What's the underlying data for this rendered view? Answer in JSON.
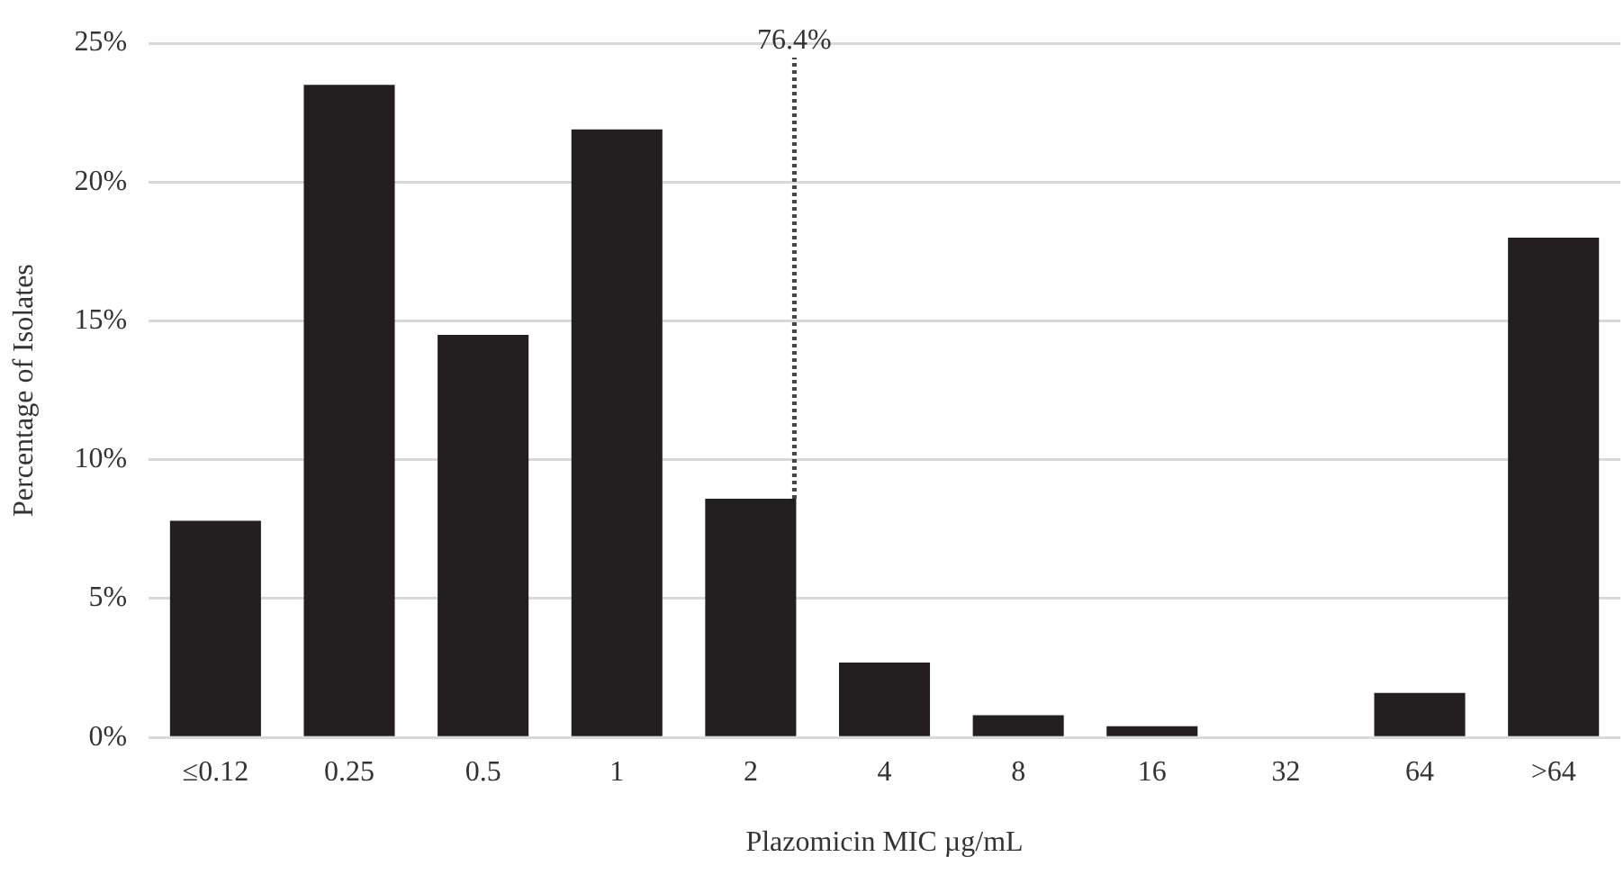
{
  "chart_data": {
    "type": "bar",
    "xlabel": "Plazomicin MIC µg/mL",
    "ylabel": "Percentage of Isolates",
    "categories": [
      "≤0.12",
      "0.25",
      "0.5",
      "1",
      "2",
      "4",
      "8",
      "16",
      "32",
      "64",
      ">64"
    ],
    "values": [
      7.8,
      23.5,
      14.5,
      21.9,
      8.6,
      2.7,
      0.8,
      0.4,
      0,
      1.6,
      18.0
    ],
    "color": "#231f20",
    "ylim": [
      0,
      25
    ],
    "yticks": [
      {
        "value": 0,
        "label": "0%"
      },
      {
        "value": 5,
        "label": "5%"
      },
      {
        "value": 10,
        "label": "10%"
      },
      {
        "value": 15,
        "label": "15%"
      },
      {
        "value": 20,
        "label": "20%"
      },
      {
        "value": 25,
        "label": "25%"
      }
    ],
    "grid": "y",
    "legend": false,
    "ref_lines": [
      {
        "axis": "x",
        "value": "2",
        "label": "76.4%",
        "color": "#444444",
        "line_style": "dotted"
      }
    ]
  }
}
